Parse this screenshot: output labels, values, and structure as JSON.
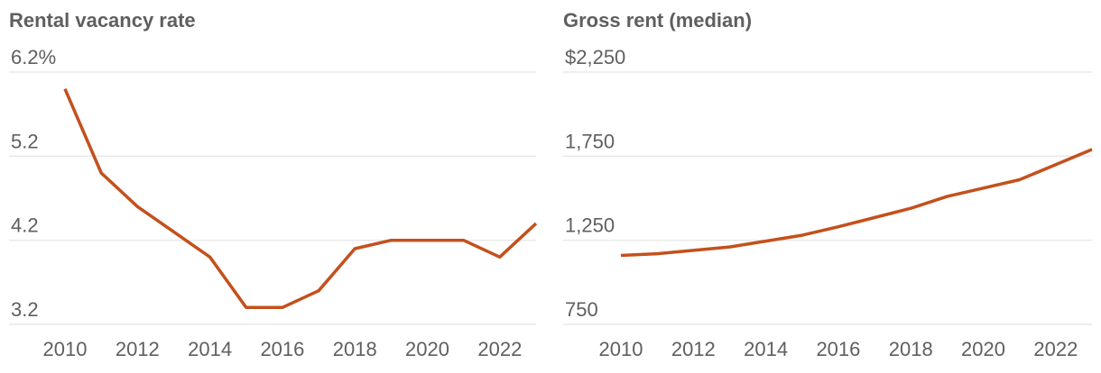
{
  "colors": {
    "line": "#c4501c",
    "text": "#5f5f5f",
    "grid": "#e3e3e3"
  },
  "chart_data": [
    {
      "type": "line",
      "title": "Rental vacancy rate",
      "xlabel": "",
      "ylabel": "",
      "x": [
        2010,
        2011,
        2012,
        2013,
        2014,
        2015,
        2016,
        2017,
        2018,
        2019,
        2020,
        2021,
        2022,
        2023
      ],
      "values": [
        6.0,
        5.0,
        4.6,
        4.3,
        4.0,
        3.4,
        3.4,
        3.6,
        4.1,
        4.2,
        4.2,
        4.2,
        4.0,
        4.4
      ],
      "ylim": [
        3.2,
        6.2
      ],
      "xlim": [
        2010,
        2023
      ],
      "y_ticks": [
        6.2,
        5.2,
        4.2,
        3.2
      ],
      "y_tick_labels": [
        "6.2%",
        "5.2",
        "4.2",
        "3.2"
      ],
      "x_ticks": [
        2010,
        2012,
        2014,
        2016,
        2018,
        2020,
        2022
      ],
      "x_tick_labels": [
        "2010",
        "2012",
        "2014",
        "2016",
        "2018",
        "2020",
        "2022"
      ],
      "grid": true,
      "legend": "none"
    },
    {
      "type": "line",
      "title": "Gross rent (median)",
      "xlabel": "",
      "ylabel": "",
      "x": [
        2010,
        2011,
        2012,
        2013,
        2014,
        2015,
        2016,
        2017,
        2018,
        2019,
        2020,
        2021,
        2022,
        2023
      ],
      "values": [
        1160,
        1170,
        1190,
        1210,
        1245,
        1280,
        1330,
        1385,
        1440,
        1510,
        1560,
        1610,
        1700,
        1790
      ],
      "ylim": [
        750,
        2250
      ],
      "xlim": [
        2010,
        2023
      ],
      "y_ticks": [
        2250,
        1750,
        1250,
        750
      ],
      "y_tick_labels": [
        "$2,250",
        "1,750",
        "1,250",
        "750"
      ],
      "x_ticks": [
        2010,
        2012,
        2014,
        2016,
        2018,
        2020,
        2022
      ],
      "x_tick_labels": [
        "2010",
        "2012",
        "2014",
        "2016",
        "2018",
        "2020",
        "2022"
      ],
      "grid": true,
      "legend": "none"
    }
  ]
}
